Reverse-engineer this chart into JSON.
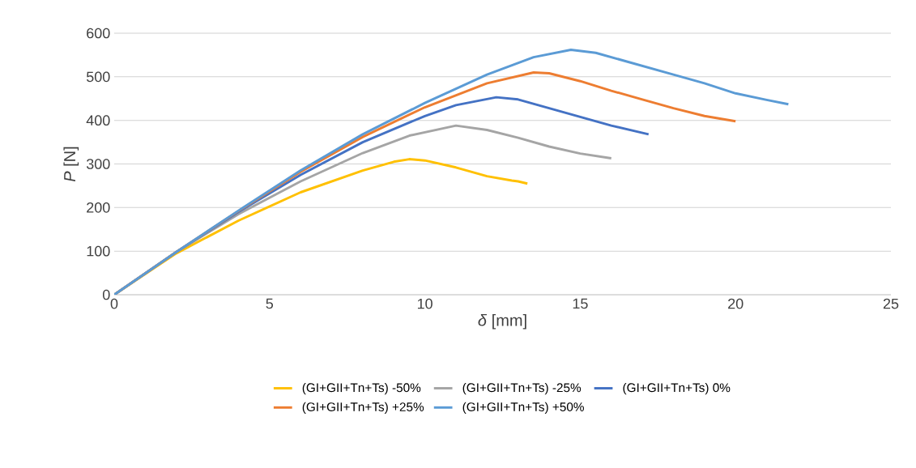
{
  "chart_data": {
    "type": "line",
    "xlabel": "*δ* [mm]",
    "ylabel": "*P* [N]",
    "xlim": [
      0,
      25
    ],
    "ylim": [
      0,
      600
    ],
    "xticks": [
      0,
      5,
      10,
      15,
      20,
      25
    ],
    "yticks": [
      0,
      100,
      200,
      300,
      400,
      500,
      600
    ],
    "grid": "y",
    "legend": "bottom",
    "marker": "none",
    "line_style": "solid",
    "series": [
      {
        "name": "(GI+GII+Tn+Ts) -50%",
        "color": "#ffc000",
        "x": [
          0,
          2,
          4,
          6,
          8,
          9,
          9.5,
          10,
          11,
          12,
          12.8,
          13,
          13.3
        ],
        "values": [
          0,
          95,
          170,
          235,
          285,
          305,
          311,
          308,
          292,
          272,
          262,
          260,
          255
        ]
      },
      {
        "name": "(GI+GII+Tn+Ts) -25%",
        "color": "#a5a5a5",
        "x": [
          0,
          2,
          4,
          6,
          8,
          9.5,
          11,
          12,
          13,
          14,
          15,
          16
        ],
        "values": [
          0,
          98,
          185,
          260,
          325,
          365,
          388,
          378,
          360,
          340,
          324,
          313
        ]
      },
      {
        "name": "(GI+GII+Tn+Ts) 0%",
        "color": "#4472c4",
        "x": [
          0,
          2,
          4,
          6,
          8,
          10,
          11,
          12.3,
          13,
          14,
          15,
          16,
          17.2
        ],
        "values": [
          0,
          98,
          190,
          275,
          350,
          410,
          435,
          453,
          448,
          428,
          408,
          388,
          368
        ]
      },
      {
        "name": "(GI+GII+Tn+Ts) +25%",
        "color": "#ed7d31",
        "x": [
          0,
          2,
          4,
          6,
          8,
          10,
          12,
          13.5,
          14,
          15,
          16,
          17,
          18,
          19,
          20
        ],
        "values": [
          0,
          98,
          192,
          282,
          362,
          430,
          485,
          510,
          508,
          490,
          468,
          448,
          428,
          410,
          398
        ]
      },
      {
        "name": "(GI+GII+Tn+Ts) +50%",
        "color": "#5b9bd5",
        "x": [
          0,
          2,
          4,
          6,
          8,
          10,
          12,
          13.5,
          14.7,
          15.5,
          16.5,
          18,
          19,
          20,
          21,
          21.7
        ],
        "values": [
          0,
          98,
          193,
          285,
          368,
          440,
          505,
          545,
          562,
          555,
          535,
          505,
          485,
          462,
          447,
          437
        ]
      }
    ]
  }
}
